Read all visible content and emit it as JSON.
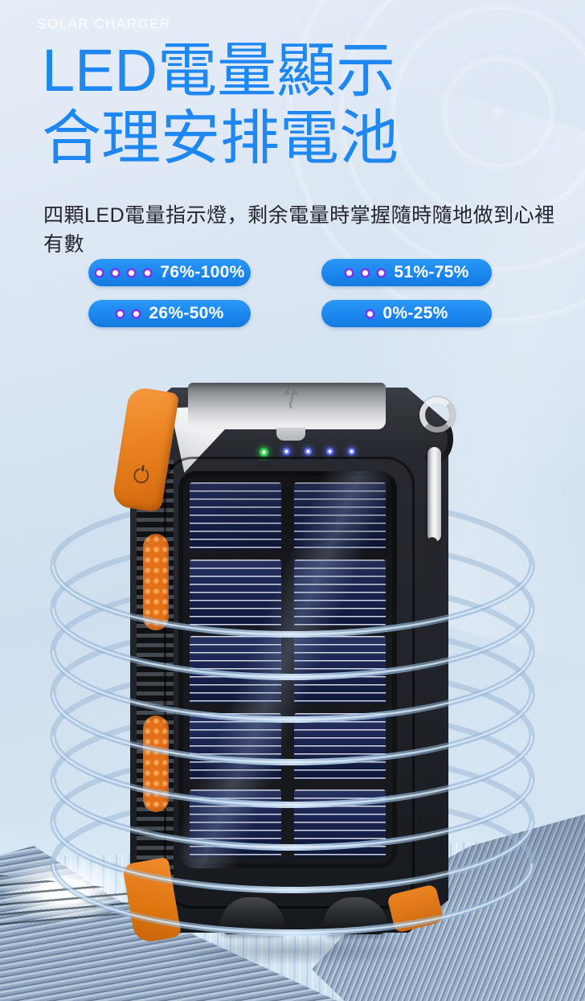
{
  "page": {
    "eyebrow": "SOLAR CHARGER",
    "title_line1": "LED電量顯示",
    "title_line2": "合理安排電池",
    "description": "四顆LED電量指示燈，剩余電量時掌握隨時隨地做到心裡有數"
  },
  "battery_badges": [
    {
      "label": "76%-100%",
      "led_count": 4
    },
    {
      "label": "51%-75%",
      "led_count": 3
    },
    {
      "label": "26%-50%",
      "led_count": 2
    },
    {
      "label": "0%-25%",
      "led_count": 1
    }
  ],
  "product": {
    "name": "solar power bank",
    "status_leds": {
      "green_count": 1,
      "blue_count": 4
    }
  },
  "colors": {
    "title_blue": "#1e87f2",
    "badge_blue": "#1a85ee",
    "led_violet": "#7b2ff0",
    "accent_orange": "#ed7c1f",
    "ring_blue": "#8fb4d9"
  }
}
